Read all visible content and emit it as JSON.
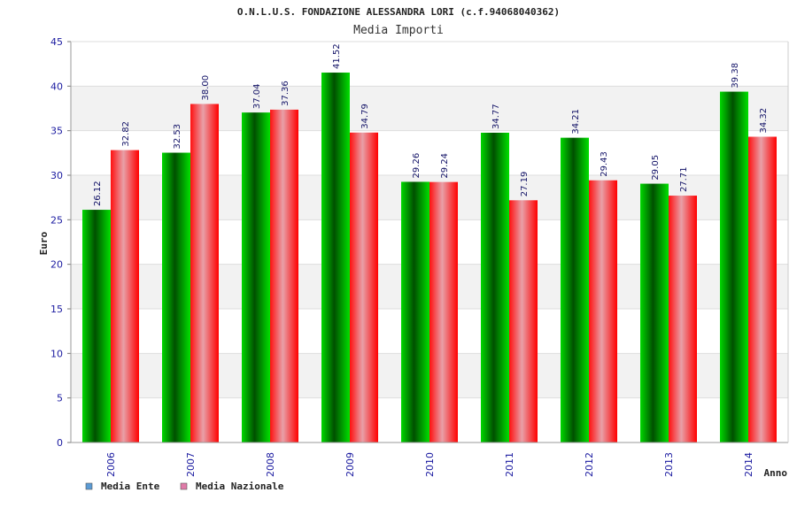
{
  "chart_data": {
    "type": "bar",
    "title": "O.N.L.U.S. FONDAZIONE ALESSANDRA LORI (c.f.94068040362)",
    "subtitle": "Media Importi",
    "xlabel": "Anno",
    "ylabel": "Euro",
    "ylim": [
      0,
      45
    ],
    "yticks": [
      "0",
      "5",
      "10",
      "15",
      "20",
      "25",
      "30",
      "35",
      "40",
      "45"
    ],
    "categories": [
      "2006",
      "2007",
      "2008",
      "2009",
      "2010",
      "2011",
      "2012",
      "2013",
      "2014"
    ],
    "series": [
      {
        "name": "Media Ente",
        "values": [
          26.12,
          32.53,
          37.04,
          41.52,
          29.26,
          34.77,
          34.21,
          29.05,
          39.38
        ],
        "labels": [
          "26.12",
          "32.53",
          "37.04",
          "41.52",
          "29.26",
          "34.77",
          "34.21",
          "29.05",
          "39.38"
        ],
        "color": "#00c000",
        "legend_color": "#5b9bd5"
      },
      {
        "name": "Media Nazionale",
        "values": [
          32.82,
          38.0,
          37.36,
          34.79,
          29.24,
          27.19,
          29.43,
          27.71,
          34.32
        ],
        "labels": [
          "32.82",
          "38.00",
          "37.36",
          "34.79",
          "29.24",
          "27.19",
          "29.43",
          "27.71",
          "34.32"
        ],
        "color": "#ff0000",
        "legend_color": "#e07aa8"
      }
    ],
    "grid": true,
    "legend": "bottom-left"
  }
}
